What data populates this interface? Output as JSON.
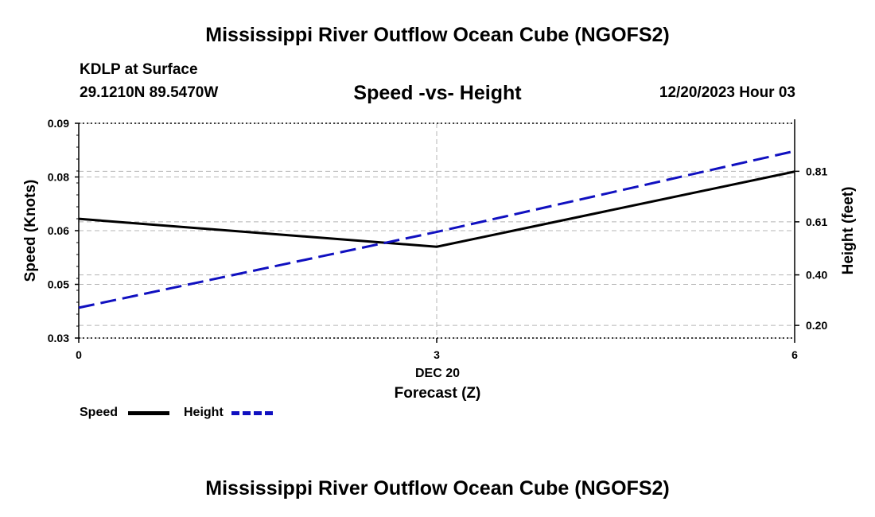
{
  "page": {
    "title_top": "Mississippi River Outflow Ocean Cube (NGOFS2)",
    "title_bottom": "Mississippi River Outflow Ocean Cube (NGOFS2)",
    "station": "KDLP at Surface",
    "coords": "29.1210N  89.5470W",
    "datetime": "12/20/2023 Hour 03"
  },
  "chart_data": {
    "type": "line",
    "title": "Speed -vs- Height",
    "xlabel": "Forecast (Z)",
    "x_date_label": "DEC 20",
    "ylabel_left": "Speed (Knots)",
    "ylabel_right": "Height (feet)",
    "x": [
      0,
      3,
      6
    ],
    "x_ticks": [
      "0",
      "3",
      "6"
    ],
    "xlim": [
      0,
      6
    ],
    "y_left_lim": [
      0.03,
      0.09
    ],
    "y_left_ticks": [
      "0.09",
      "0.08",
      "0.06",
      "0.05",
      "0.03"
    ],
    "y_left_tick_values": [
      0.09,
      0.075,
      0.06,
      0.045,
      0.03
    ],
    "y_right_lim": [
      0.15,
      1.0
    ],
    "y_right_ticks": [
      "0.81",
      "0.61",
      "0.40",
      "0.20"
    ],
    "y_right_tick_values": [
      0.81,
      0.61,
      0.4,
      0.2
    ],
    "series": [
      {
        "name": "Speed",
        "axis": "left",
        "color": "#000000",
        "style": "solid",
        "values": [
          0.0633,
          0.0555,
          0.0765
        ]
      },
      {
        "name": "Height",
        "axis": "right",
        "color": "#1010c0",
        "style": "dashed",
        "values": [
          0.27,
          0.57,
          0.89
        ]
      }
    ],
    "grid": true,
    "legend": "bottom-left"
  }
}
